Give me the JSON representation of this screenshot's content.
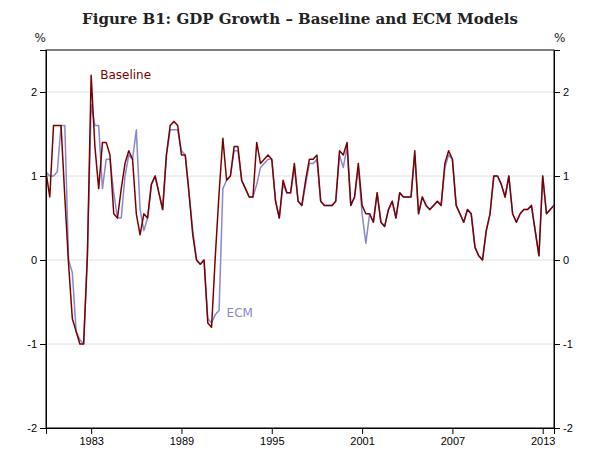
{
  "chart_data": {
    "type": "line",
    "title": "Figure B1: GDP Growth – Baseline and ECM Models",
    "ylabel": "%",
    "y2label": "%",
    "xlim": [
      1980.0,
      2013.75
    ],
    "ylim": [
      -2.0,
      2.5
    ],
    "y2lim": [
      -2.0,
      2.5
    ],
    "xticks": [
      1983,
      1989,
      1995,
      2001,
      2007,
      2013
    ],
    "yticks": [
      -2,
      -1,
      0,
      1,
      2
    ],
    "y2ticks": [
      -2,
      -1,
      0,
      1,
      2
    ],
    "grid": true,
    "x": [
      1980,
      1980.25,
      1980.5,
      1980.75,
      1981,
      1981.25,
      1981.5,
      1981.75,
      1982,
      1982.25,
      1982.5,
      1982.75,
      1983,
      1983.25,
      1983.5,
      1983.75,
      1984,
      1984.25,
      1984.5,
      1984.75,
      1985,
      1985.25,
      1985.5,
      1985.75,
      1986,
      1986.25,
      1986.5,
      1986.75,
      1987,
      1987.25,
      1987.5,
      1987.75,
      1988,
      1988.25,
      1988.5,
      1988.75,
      1989,
      1989.25,
      1989.5,
      1989.75,
      1990,
      1990.25,
      1990.5,
      1990.75,
      1991,
      1991.25,
      1991.5,
      1991.75,
      1992,
      1992.25,
      1992.5,
      1992.75,
      1993,
      1993.25,
      1993.5,
      1993.75,
      1994,
      1994.25,
      1994.5,
      1994.75,
      1995,
      1995.25,
      1995.5,
      1995.75,
      1996,
      1996.25,
      1996.5,
      1996.75,
      1997,
      1997.25,
      1997.5,
      1997.75,
      1998,
      1998.25,
      1998.5,
      1998.75,
      1999,
      1999.25,
      1999.5,
      1999.75,
      2000,
      2000.25,
      2000.5,
      2000.75,
      2001,
      2001.25,
      2001.5,
      2001.75,
      2002,
      2002.25,
      2002.5,
      2002.75,
      2003,
      2003.25,
      2003.5,
      2003.75,
      2004,
      2004.25,
      2004.5,
      2004.75,
      2005,
      2005.25,
      2005.5,
      2005.75,
      2006,
      2006.25,
      2006.5,
      2006.75,
      2007,
      2007.25,
      2007.5,
      2007.75,
      2008,
      2008.25,
      2008.5,
      2008.75,
      2009,
      2009.25,
      2009.5,
      2009.75,
      2010,
      2010.25,
      2010.5,
      2010.75,
      2011,
      2011.25,
      2011.5,
      2011.75,
      2012,
      2012.25,
      2012.5,
      2012.75,
      2013,
      2013.25,
      2013.5,
      2013.75
    ],
    "series": [
      {
        "name": "ECM",
        "color": "#8888CC",
        "values": [
          1.05,
          1.0,
          1.0,
          1.05,
          1.6,
          1.6,
          0.0,
          -0.15,
          -0.85,
          -0.95,
          -1.0,
          0.05,
          1.85,
          1.6,
          1.6,
          0.85,
          1.2,
          1.2,
          0.8,
          0.5,
          0.5,
          1.0,
          1.25,
          1.2,
          1.55,
          0.6,
          0.35,
          0.5,
          0.9,
          1.0,
          0.8,
          0.6,
          1.25,
          1.55,
          1.55,
          1.55,
          1.3,
          1.25,
          0.8,
          0.35,
          0.0,
          -0.05,
          0.0,
          -0.7,
          -0.75,
          -0.65,
          -0.6,
          0.85,
          0.95,
          1.0,
          1.3,
          1.3,
          0.95,
          0.85,
          0.75,
          0.75,
          0.9,
          1.1,
          1.15,
          1.2,
          1.2,
          0.7,
          0.5,
          0.9,
          0.8,
          0.8,
          1.1,
          0.7,
          0.65,
          0.9,
          1.15,
          1.15,
          1.2,
          0.7,
          0.65,
          0.65,
          0.65,
          0.7,
          1.25,
          1.1,
          1.35,
          0.65,
          0.75,
          1.1,
          0.55,
          0.2,
          0.55,
          0.45,
          0.8,
          0.45,
          0.4,
          0.6,
          0.7,
          0.5,
          0.8,
          0.75,
          0.75,
          0.75,
          1.25,
          0.55,
          0.75,
          0.65,
          0.6,
          0.65,
          0.7,
          0.65,
          1.1,
          1.25,
          1.2,
          0.65,
          0.55,
          0.45,
          0.6,
          0.55,
          0.15,
          0.05,
          0.0,
          0.35,
          0.55,
          1.0,
          1.0,
          0.9,
          0.75,
          1.0,
          0.55,
          0.45,
          0.55,
          0.6,
          0.6,
          0.65,
          0.35,
          0.05,
          1.0,
          0.55,
          0.6,
          0.65
        ]
      },
      {
        "name": "Baseline",
        "color": "#7B0000",
        "values": [
          1.05,
          0.75,
          1.6,
          1.6,
          1.6,
          0.75,
          -0.05,
          -0.7,
          -0.85,
          -1.0,
          -1.0,
          0.05,
          2.2,
          1.35,
          0.85,
          1.4,
          1.4,
          1.25,
          0.55,
          0.5,
          0.85,
          1.15,
          1.3,
          1.2,
          0.55,
          0.3,
          0.55,
          0.5,
          0.9,
          1.0,
          0.8,
          0.6,
          1.25,
          1.6,
          1.65,
          1.6,
          1.25,
          1.25,
          0.8,
          0.3,
          0.0,
          -0.05,
          0.0,
          -0.75,
          -0.8,
          0.05,
          0.8,
          1.45,
          0.95,
          1.0,
          1.35,
          1.35,
          0.95,
          0.85,
          0.75,
          0.75,
          1.4,
          1.15,
          1.2,
          1.25,
          1.2,
          0.7,
          0.5,
          0.95,
          0.8,
          0.8,
          1.15,
          0.7,
          0.65,
          0.95,
          1.2,
          1.2,
          1.25,
          0.7,
          0.65,
          0.65,
          0.65,
          0.7,
          1.3,
          1.25,
          1.4,
          0.65,
          0.75,
          1.15,
          0.65,
          0.55,
          0.55,
          0.45,
          0.8,
          0.45,
          0.4,
          0.6,
          0.7,
          0.5,
          0.8,
          0.75,
          0.75,
          0.75,
          1.3,
          0.55,
          0.75,
          0.65,
          0.6,
          0.65,
          0.7,
          0.65,
          1.15,
          1.3,
          1.2,
          0.65,
          0.55,
          0.45,
          0.6,
          0.55,
          0.15,
          0.05,
          0.0,
          0.35,
          0.55,
          1.0,
          1.0,
          0.9,
          0.75,
          1.0,
          0.55,
          0.45,
          0.55,
          0.6,
          0.6,
          0.65,
          0.35,
          0.05,
          1.0,
          0.55,
          0.6,
          0.65
        ]
      }
    ],
    "annotations": [
      {
        "text": "Baseline",
        "x": 1983.6,
        "y": 2.13
      },
      {
        "text": "ECM",
        "x": 1992.0,
        "y": -0.55
      }
    ]
  }
}
